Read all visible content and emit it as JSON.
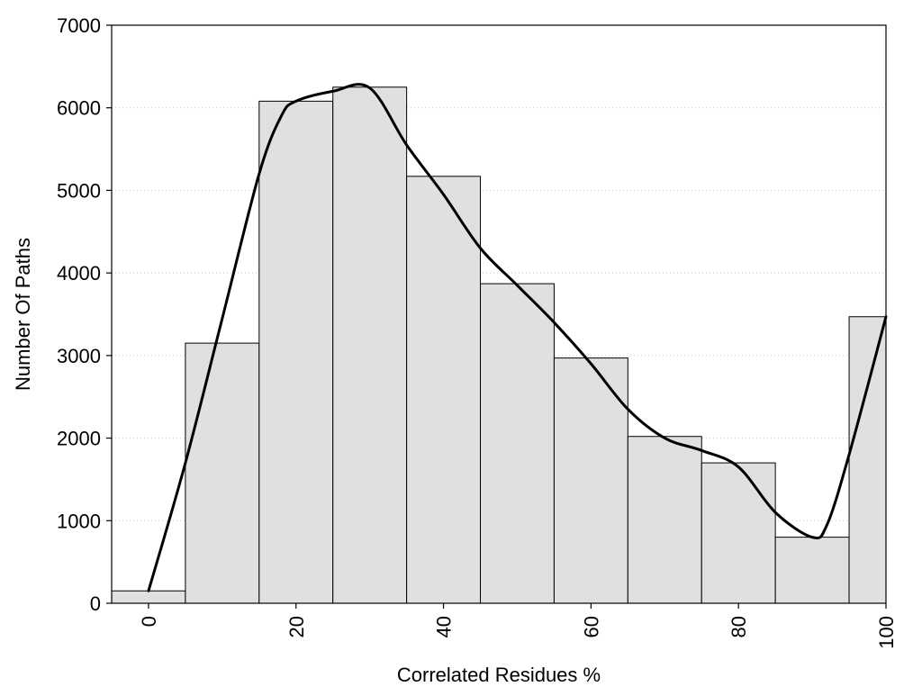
{
  "chart_data": {
    "type": "bar",
    "xlabel": "Correlated Residues %",
    "ylabel": "Number Of Paths",
    "xlim": [
      -5,
      100
    ],
    "ylim": [
      0,
      7000
    ],
    "grid": "horizontal dotted",
    "bin_width": 10,
    "x_ticks": [
      "0",
      "20",
      "40",
      "60",
      "80",
      "100"
    ],
    "x_tick_values": [
      0,
      20,
      40,
      60,
      80,
      100
    ],
    "y_ticks": [
      "0",
      "1000",
      "2000",
      "3000",
      "4000",
      "5000",
      "6000",
      "7000"
    ],
    "y_tick_values": [
      0,
      1000,
      2000,
      3000,
      4000,
      5000,
      6000,
      7000
    ],
    "bar_fill": "#e0e0e0",
    "bar_stroke": "#000000",
    "series": [
      {
        "type": "bar",
        "x": [
          0,
          10,
          20,
          30,
          40,
          50,
          60,
          70,
          80,
          90,
          100
        ],
        "values": [
          150,
          3150,
          6080,
          6250,
          5170,
          3870,
          2970,
          2020,
          1700,
          800,
          3470
        ]
      },
      {
        "type": "line",
        "color": "#000000",
        "x": [
          0,
          5,
          10,
          15,
          18,
          20,
          25,
          30,
          35,
          40,
          45,
          50,
          55,
          60,
          65,
          70,
          75,
          80,
          85,
          90,
          92,
          95,
          100
        ],
        "values": [
          150,
          1700,
          3450,
          5200,
          5900,
          6080,
          6200,
          6240,
          5550,
          4950,
          4300,
          3850,
          3400,
          2900,
          2350,
          2000,
          1850,
          1650,
          1100,
          800,
          950,
          1800,
          3470
        ]
      }
    ]
  }
}
